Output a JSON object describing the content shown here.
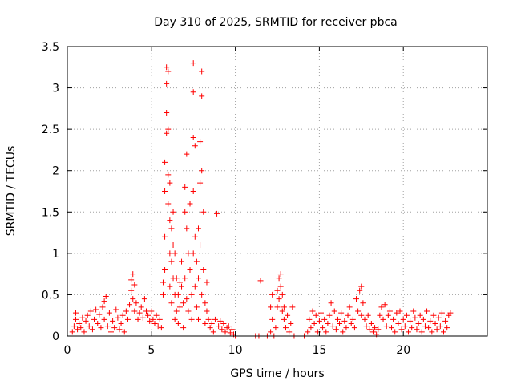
{
  "chart_data": {
    "type": "scatter",
    "title": "Day 310 of 2025, SRMTID for receiver pbca",
    "xlabel": "GPS time / hours",
    "ylabel": "SRMTID / TECUs",
    "xlim": [
      0,
      25
    ],
    "ylim": [
      0,
      3.5
    ],
    "xticks": [
      0,
      5,
      10,
      15,
      20
    ],
    "xtick_labels": [
      "0",
      "5",
      "10",
      "15",
      "20"
    ],
    "yticks": [
      0,
      0.5,
      1,
      1.5,
      2,
      2.5,
      3,
      3.5
    ],
    "ytick_labels": [
      "0",
      "0.5",
      "1",
      "1.5",
      "2",
      "2.5",
      "3",
      "3.5"
    ],
    "grid": true,
    "marker": "+",
    "color": "#ff0000",
    "series": [
      {
        "name": "pbca",
        "points": [
          [
            0.3,
            0.05
          ],
          [
            0.4,
            0.12
          ],
          [
            0.5,
            0.2
          ],
          [
            0.5,
            0.28
          ],
          [
            0.6,
            0.08
          ],
          [
            0.7,
            0.15
          ],
          [
            0.8,
            0.1
          ],
          [
            0.9,
            0.22
          ],
          [
            1.0,
            0.05
          ],
          [
            1.1,
            0.18
          ],
          [
            1.2,
            0.25
          ],
          [
            1.3,
            0.12
          ],
          [
            1.4,
            0.3
          ],
          [
            1.5,
            0.08
          ],
          [
            1.6,
            0.2
          ],
          [
            1.7,
            0.32
          ],
          [
            1.8,
            0.15
          ],
          [
            1.9,
            0.26
          ],
          [
            2.0,
            0.1
          ],
          [
            2.1,
            0.35
          ],
          [
            2.2,
            0.42
          ],
          [
            2.2,
            0.2
          ],
          [
            2.3,
            0.48
          ],
          [
            2.4,
            0.12
          ],
          [
            2.5,
            0.28
          ],
          [
            2.6,
            0.05
          ],
          [
            2.7,
            0.18
          ],
          [
            2.8,
            0.1
          ],
          [
            2.9,
            0.32
          ],
          [
            3.0,
            0.22
          ],
          [
            3.1,
            0.08
          ],
          [
            3.2,
            0.15
          ],
          [
            3.3,
            0.25
          ],
          [
            3.4,
            0.05
          ],
          [
            3.5,
            0.3
          ],
          [
            3.6,
            0.2
          ],
          [
            3.7,
            0.38
          ],
          [
            3.8,
            0.55
          ],
          [
            3.8,
            0.68
          ],
          [
            3.9,
            0.75
          ],
          [
            3.9,
            0.45
          ],
          [
            4.0,
            0.62
          ],
          [
            4.0,
            0.3
          ],
          [
            4.1,
            0.4
          ],
          [
            4.2,
            0.2
          ],
          [
            4.3,
            0.28
          ],
          [
            4.4,
            0.35
          ],
          [
            4.5,
            0.22
          ],
          [
            4.6,
            0.45
          ],
          [
            4.7,
            0.3
          ],
          [
            4.8,
            0.25
          ],
          [
            4.9,
            0.18
          ],
          [
            5.0,
            0.3
          ],
          [
            5.1,
            0.2
          ],
          [
            5.2,
            0.15
          ],
          [
            5.3,
            0.25
          ],
          [
            5.4,
            0.12
          ],
          [
            5.5,
            0.2
          ],
          [
            5.6,
            0.1
          ],
          [
            5.7,
            0.5
          ],
          [
            5.7,
            0.65
          ],
          [
            5.8,
            0.8
          ],
          [
            5.8,
            1.2
          ],
          [
            5.8,
            1.75
          ],
          [
            5.8,
            2.1
          ],
          [
            5.9,
            2.45
          ],
          [
            5.9,
            2.7
          ],
          [
            5.9,
            3.25
          ],
          [
            5.9,
            3.05
          ],
          [
            6.0,
            3.2
          ],
          [
            6.0,
            2.5
          ],
          [
            6.0,
            1.95
          ],
          [
            6.0,
            1.6
          ],
          [
            6.1,
            1.85
          ],
          [
            6.1,
            1.4
          ],
          [
            6.1,
            1.0
          ],
          [
            6.1,
            0.6
          ],
          [
            6.2,
            1.3
          ],
          [
            6.2,
            0.9
          ],
          [
            6.2,
            0.4
          ],
          [
            6.3,
            1.5
          ],
          [
            6.3,
            1.1
          ],
          [
            6.3,
            0.7
          ],
          [
            6.4,
            1.0
          ],
          [
            6.4,
            0.5
          ],
          [
            6.4,
            0.2
          ],
          [
            6.5,
            0.7
          ],
          [
            6.5,
            0.3
          ],
          [
            6.6,
            0.5
          ],
          [
            6.6,
            0.15
          ],
          [
            6.7,
            0.65
          ],
          [
            6.7,
            0.35
          ],
          [
            6.8,
            0.9
          ],
          [
            6.8,
            0.6
          ],
          [
            6.9,
            0.4
          ],
          [
            6.9,
            0.1
          ],
          [
            7.0,
            1.8
          ],
          [
            7.0,
            1.5
          ],
          [
            7.0,
            0.7
          ],
          [
            7.1,
            2.2
          ],
          [
            7.1,
            1.3
          ],
          [
            7.1,
            0.45
          ],
          [
            7.2,
            1.0
          ],
          [
            7.2,
            0.3
          ],
          [
            7.3,
            1.6
          ],
          [
            7.3,
            0.8
          ],
          [
            7.4,
            0.5
          ],
          [
            7.4,
            0.2
          ],
          [
            7.5,
            3.3
          ],
          [
            7.5,
            2.95
          ],
          [
            7.5,
            2.4
          ],
          [
            7.5,
            1.75
          ],
          [
            7.5,
            1.0
          ],
          [
            7.6,
            2.3
          ],
          [
            7.6,
            1.2
          ],
          [
            7.6,
            0.6
          ],
          [
            7.7,
            0.9
          ],
          [
            7.7,
            0.35
          ],
          [
            7.8,
            1.3
          ],
          [
            7.8,
            0.7
          ],
          [
            7.8,
            0.2
          ],
          [
            7.9,
            2.35
          ],
          [
            7.9,
            1.85
          ],
          [
            7.9,
            1.1
          ],
          [
            8.0,
            3.2
          ],
          [
            8.0,
            2.9
          ],
          [
            8.0,
            2.0
          ],
          [
            8.0,
            0.5
          ],
          [
            8.1,
            1.5
          ],
          [
            8.1,
            0.8
          ],
          [
            8.2,
            0.4
          ],
          [
            8.2,
            0.15
          ],
          [
            8.3,
            0.65
          ],
          [
            8.3,
            0.3
          ],
          [
            8.4,
            0.2
          ],
          [
            8.5,
            0.1
          ],
          [
            8.6,
            0.15
          ],
          [
            8.7,
            0.05
          ],
          [
            8.8,
            0.2
          ],
          [
            8.9,
            1.48
          ],
          [
            9.0,
            0.12
          ],
          [
            9.1,
            0.18
          ],
          [
            9.2,
            0.08
          ],
          [
            9.3,
            0.15
          ],
          [
            9.4,
            0.05
          ],
          [
            9.5,
            0.1
          ],
          [
            9.6,
            0.12
          ],
          [
            9.7,
            0.04
          ],
          [
            9.8,
            0.08
          ],
          [
            9.9,
            0.02
          ],
          [
            10.0,
            0.0
          ],
          [
            11.2,
            0.0
          ],
          [
            11.4,
            0.0
          ],
          [
            11.5,
            0.67
          ],
          [
            11.9,
            0.0
          ],
          [
            12.0,
            0.0
          ],
          [
            12.1,
            0.05
          ],
          [
            12.1,
            0.35
          ],
          [
            12.2,
            0.5
          ],
          [
            12.2,
            0.2
          ],
          [
            12.3,
            0.0
          ],
          [
            12.4,
            0.1
          ],
          [
            12.5,
            0.35
          ],
          [
            12.5,
            0.55
          ],
          [
            12.6,
            0.45
          ],
          [
            12.6,
            0.7
          ],
          [
            12.7,
            0.75
          ],
          [
            12.7,
            0.6
          ],
          [
            12.8,
            0.3
          ],
          [
            12.8,
            0.5
          ],
          [
            12.9,
            0.2
          ],
          [
            12.9,
            0.35
          ],
          [
            13.0,
            0.1
          ],
          [
            13.1,
            0.25
          ],
          [
            13.2,
            0.05
          ],
          [
            13.3,
            0.15
          ],
          [
            13.4,
            0.35
          ],
          [
            13.5,
            0.0
          ],
          [
            14.1,
            0.0
          ],
          [
            14.3,
            0.05
          ],
          [
            14.4,
            0.2
          ],
          [
            14.5,
            0.1
          ],
          [
            14.6,
            0.3
          ],
          [
            14.7,
            0.15
          ],
          [
            14.8,
            0.25
          ],
          [
            14.9,
            0.05
          ],
          [
            15.0,
            0.18
          ],
          [
            15.1,
            0.28
          ],
          [
            15.2,
            0.1
          ],
          [
            15.3,
            0.2
          ],
          [
            15.4,
            0.05
          ],
          [
            15.5,
            0.15
          ],
          [
            15.6,
            0.25
          ],
          [
            15.7,
            0.4
          ],
          [
            15.8,
            0.12
          ],
          [
            15.9,
            0.3
          ],
          [
            16.0,
            0.08
          ],
          [
            16.1,
            0.2
          ],
          [
            16.2,
            0.15
          ],
          [
            16.3,
            0.28
          ],
          [
            16.4,
            0.05
          ],
          [
            16.5,
            0.18
          ],
          [
            16.6,
            0.1
          ],
          [
            16.7,
            0.25
          ],
          [
            16.8,
            0.35
          ],
          [
            16.9,
            0.15
          ],
          [
            17.0,
            0.2
          ],
          [
            17.1,
            0.1
          ],
          [
            17.2,
            0.45
          ],
          [
            17.3,
            0.3
          ],
          [
            17.4,
            0.55
          ],
          [
            17.5,
            0.6
          ],
          [
            17.5,
            0.25
          ],
          [
            17.6,
            0.4
          ],
          [
            17.7,
            0.2
          ],
          [
            17.8,
            0.12
          ],
          [
            17.9,
            0.25
          ],
          [
            18.0,
            0.08
          ],
          [
            18.1,
            0.15
          ],
          [
            18.2,
            0.05
          ],
          [
            18.3,
            0.1
          ],
          [
            18.4,
            0.02
          ],
          [
            18.5,
            0.08
          ],
          [
            18.6,
            0.25
          ],
          [
            18.7,
            0.35
          ],
          [
            18.8,
            0.2
          ],
          [
            18.9,
            0.38
          ],
          [
            19.0,
            0.12
          ],
          [
            19.1,
            0.25
          ],
          [
            19.2,
            0.3
          ],
          [
            19.3,
            0.1
          ],
          [
            19.4,
            0.2
          ],
          [
            19.5,
            0.05
          ],
          [
            19.6,
            0.28
          ],
          [
            19.7,
            0.15
          ],
          [
            19.8,
            0.3
          ],
          [
            19.9,
            0.08
          ],
          [
            20.0,
            0.2
          ],
          [
            20.1,
            0.12
          ],
          [
            20.2,
            0.25
          ],
          [
            20.3,
            0.05
          ],
          [
            20.4,
            0.18
          ],
          [
            20.5,
            0.1
          ],
          [
            20.6,
            0.3
          ],
          [
            20.7,
            0.22
          ],
          [
            20.8,
            0.08
          ],
          [
            20.9,
            0.15
          ],
          [
            21.0,
            0.25
          ],
          [
            21.1,
            0.05
          ],
          [
            21.2,
            0.2
          ],
          [
            21.3,
            0.12
          ],
          [
            21.4,
            0.3
          ],
          [
            21.5,
            0.1
          ],
          [
            21.6,
            0.18
          ],
          [
            21.7,
            0.05
          ],
          [
            21.8,
            0.25
          ],
          [
            21.9,
            0.15
          ],
          [
            22.0,
            0.08
          ],
          [
            22.1,
            0.22
          ],
          [
            22.2,
            0.12
          ],
          [
            22.3,
            0.28
          ],
          [
            22.4,
            0.05
          ],
          [
            22.5,
            0.18
          ],
          [
            22.6,
            0.1
          ],
          [
            22.7,
            0.25
          ],
          [
            22.8,
            0.28
          ]
        ]
      }
    ]
  }
}
